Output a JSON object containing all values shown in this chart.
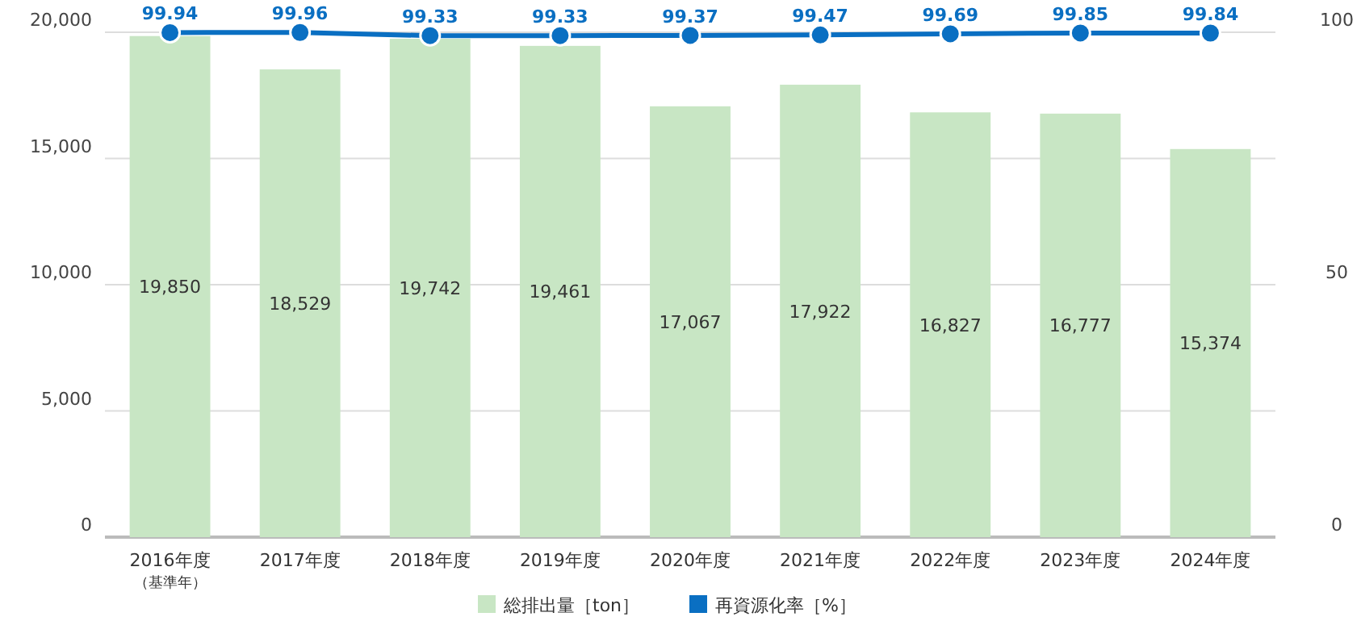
{
  "chart_data": {
    "type": "bar",
    "categories": [
      "2016年度$_{（基準年）}$",
      "2017年度",
      "2018年度",
      "2019年度",
      "2020年度",
      "2021年度",
      "2022年度",
      "2023年度",
      "2024年度"
    ],
    "series": [
      {
        "name": "総排出量［ton］",
        "color": "#c8e6c4",
        "values": [
          19850,
          18529,
          19742,
          19461,
          17067,
          17922,
          16827,
          16777,
          15374
        ],
        "value_labels": [
          "19,850",
          "18,529",
          "19,742",
          "19,461",
          "17,067",
          "17,922",
          "16,827",
          "16,777",
          "15,374"
        ]
      },
      {
        "name": "再資源化率［%］",
        "type": "line",
        "axis": "y2",
        "color": "#0a6fc2",
        "values": [
          99.94,
          99.96,
          99.33,
          99.33,
          99.37,
          99.47,
          99.69,
          99.85,
          99.84
        ]
      }
    ],
    "ylim": [
      0,
      20000
    ],
    "yticks": [
      {
        "value": 0,
        "label": "0"
      },
      {
        "value": 5000,
        "label": "5,000"
      },
      {
        "value": 10000,
        "label": "10,000"
      },
      {
        "value": 15000,
        "label": "15,000"
      },
      {
        "value": 20000,
        "label": "20,000"
      }
    ],
    "y2lim": [
      0,
      100
    ],
    "y2ticks": [
      0,
      50,
      100
    ],
    "data_labels": true,
    "grid": "y",
    "legend": "bottom",
    "marker": "circle",
    "line_style": "solid"
  }
}
